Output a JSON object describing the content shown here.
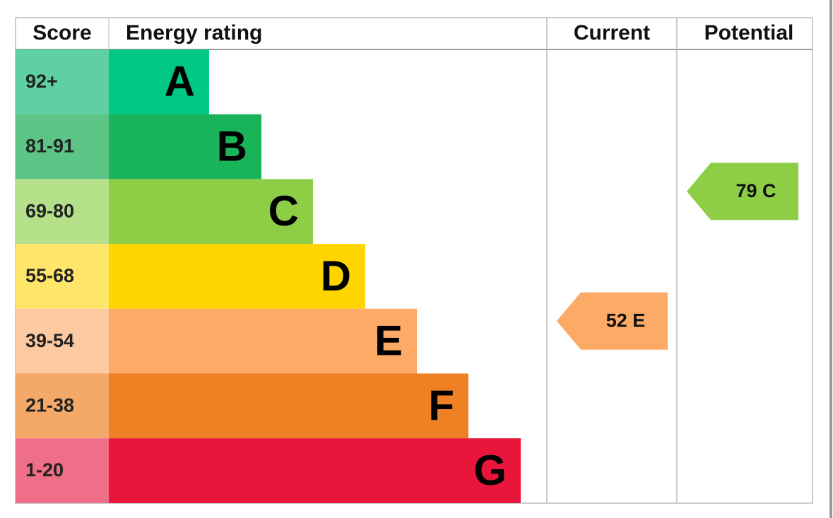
{
  "header": {
    "score": "Score",
    "energy_rating": "Energy rating",
    "current": "Current",
    "potential": "Potential"
  },
  "bands": [
    {
      "score": "92+",
      "letter": "A"
    },
    {
      "score": "81-91",
      "letter": "B"
    },
    {
      "score": "69-80",
      "letter": "C"
    },
    {
      "score": "55-68",
      "letter": "D"
    },
    {
      "score": "39-54",
      "letter": "E"
    },
    {
      "score": "21-38",
      "letter": "F"
    },
    {
      "score": "1-20",
      "letter": "G"
    }
  ],
  "current": "52 E",
  "potential": "79 C"
}
